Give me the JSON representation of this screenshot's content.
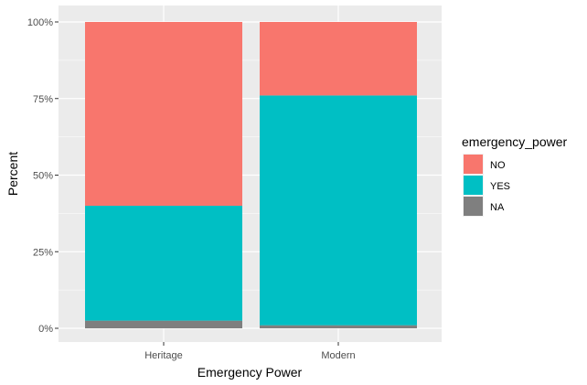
{
  "chart_data": {
    "type": "bar",
    "stacked": true,
    "categories": [
      "Heritage",
      "Modern"
    ],
    "series": [
      {
        "name": "NO",
        "color": "#F8766D",
        "values": [
          0.6,
          0.24
        ]
      },
      {
        "name": "YES",
        "color": "#00BFC4",
        "values": [
          0.375,
          0.75
        ]
      },
      {
        "name": "NA",
        "color": "#7F7F7F",
        "values": [
          0.025,
          0.01
        ]
      }
    ],
    "stack_order_bottom_to_top": [
      "NA",
      "YES",
      "NO"
    ],
    "xlabel": "Emergency Power",
    "ylabel": "Percent",
    "ylim": [
      0,
      1
    ],
    "yticks": [
      0,
      0.25,
      0.5,
      0.75,
      1.0
    ],
    "ytick_labels": [
      "0%",
      "25%",
      "50%",
      "75%",
      "100%"
    ],
    "legend": {
      "title": "emergency_power",
      "placement": "right"
    },
    "panel_background": "#EBEBEB",
    "grid": true
  }
}
